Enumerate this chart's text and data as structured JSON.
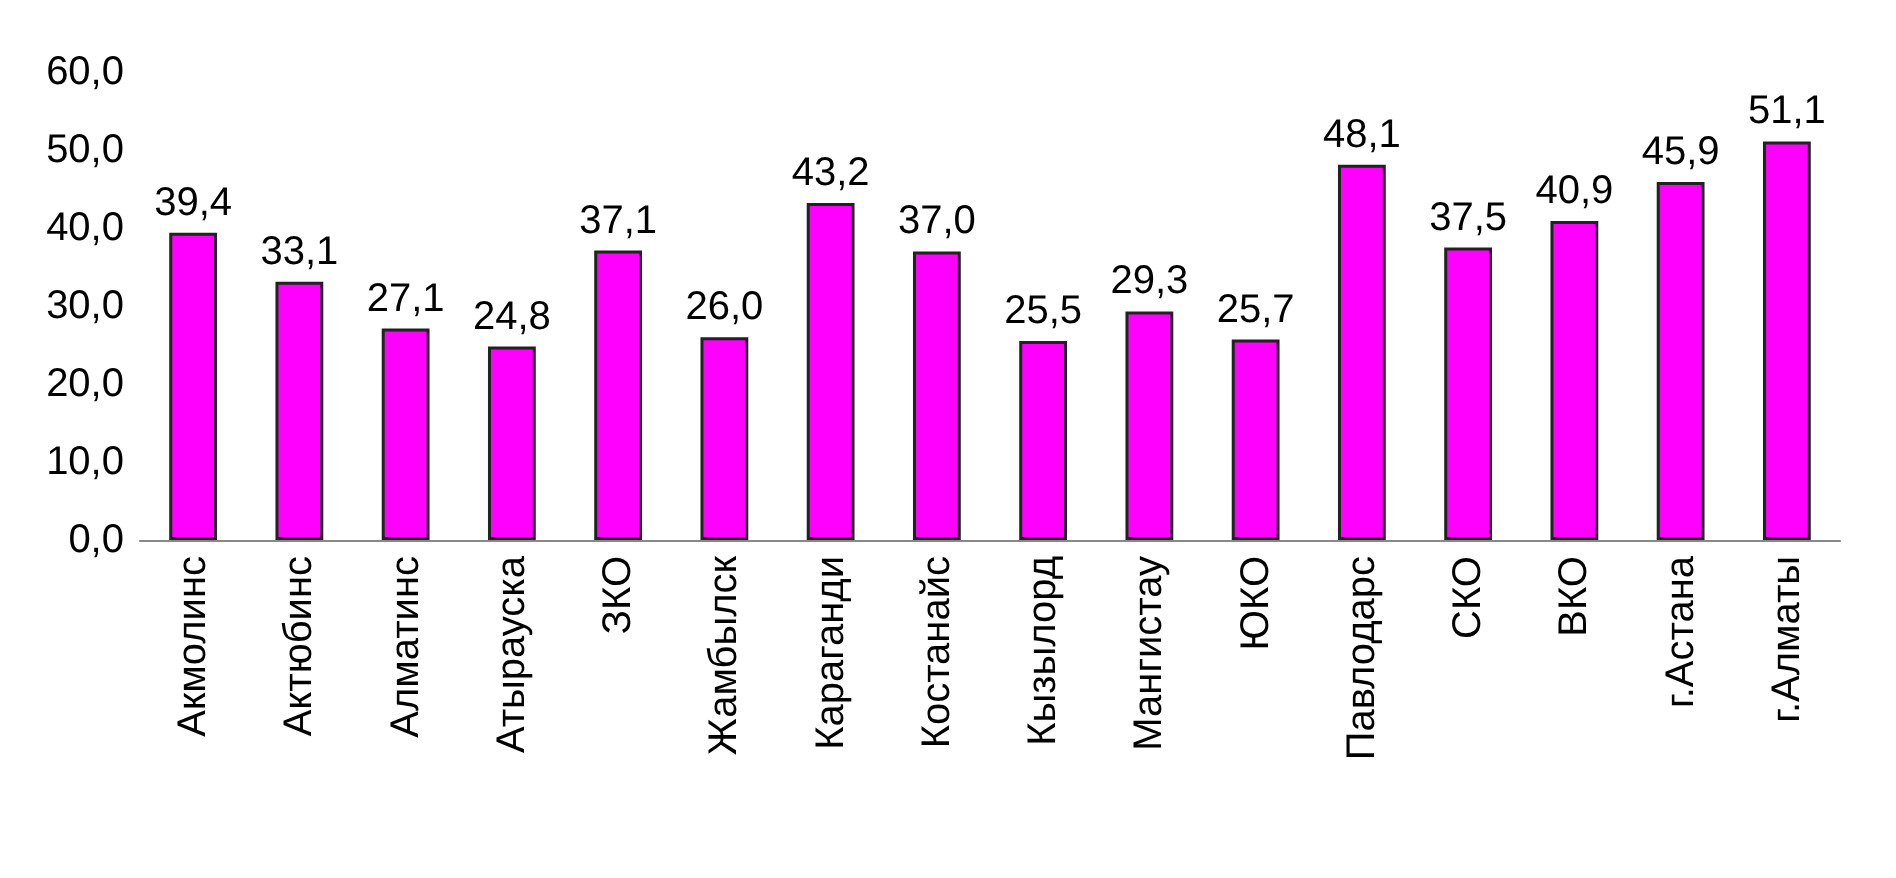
{
  "chart_data": {
    "type": "bar",
    "categories": [
      "Акмолинс",
      "Актюбинс",
      "Алматинс",
      "Атырауска",
      "ЗКО",
      "Жамбылск",
      "Караганди",
      "Костанайс",
      "Кызылорд",
      "Мангистау",
      "ЮКО",
      "Павлодарс",
      "СКО",
      "ВКО",
      "г.Астана",
      "г.Алматы"
    ],
    "values": [
      39.4,
      33.1,
      27.1,
      24.8,
      37.1,
      26.0,
      43.2,
      37.0,
      25.5,
      29.3,
      25.7,
      48.1,
      37.5,
      40.9,
      45.9,
      51.1
    ],
    "value_labels": [
      "39,4",
      "33,1",
      "27,1",
      "24,8",
      "37,1",
      "26,0",
      "43,2",
      "37,0",
      "25,5",
      "29,3",
      "25,7",
      "48,1",
      "37,5",
      "40,9",
      "45,9",
      "51,1"
    ],
    "color": "#ff00ff",
    "ylim": [
      0,
      60
    ],
    "yticks": [
      {
        "value": 0,
        "label": "0,0"
      },
      {
        "value": 10,
        "label": "10,0"
      },
      {
        "value": 20,
        "label": "20,0"
      },
      {
        "value": 30,
        "label": "30,0"
      },
      {
        "value": 40,
        "label": "40,0"
      },
      {
        "value": 50,
        "label": "50,0"
      },
      {
        "value": 60,
        "label": "60,0"
      }
    ],
    "grid": false
  }
}
